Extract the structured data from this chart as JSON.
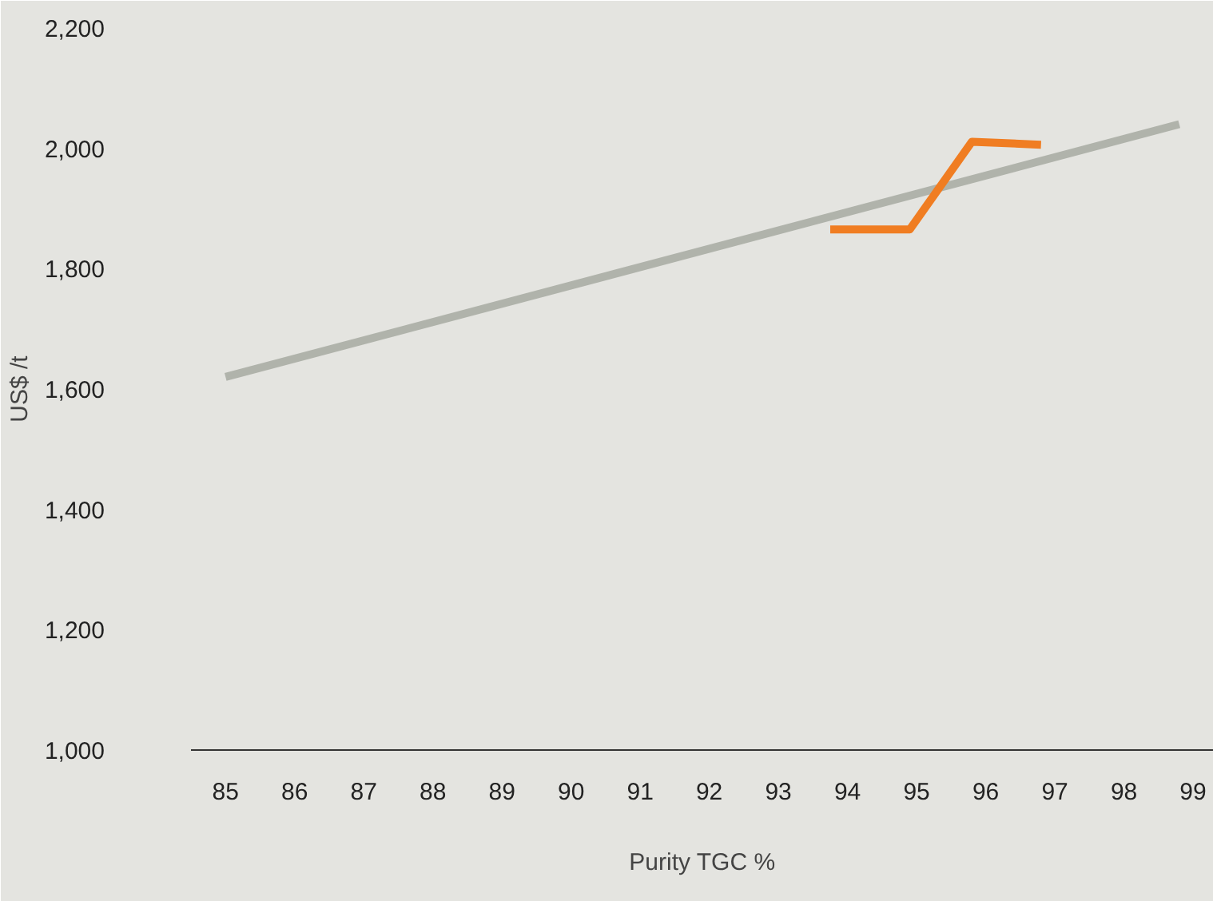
{
  "chart_data": {
    "type": "line",
    "xlabel": "Purity TGC %",
    "ylabel": "US$ /t",
    "xlim": [
      84.5,
      99.3
    ],
    "ylim": [
      1000,
      2200
    ],
    "xticks": [
      85,
      86,
      87,
      88,
      89,
      90,
      91,
      92,
      93,
      94,
      95,
      96,
      97,
      98,
      99
    ],
    "yticks": [
      {
        "value": 1000,
        "label": "1,000"
      },
      {
        "value": 1200,
        "label": "1,200"
      },
      {
        "value": 1400,
        "label": "1,400"
      },
      {
        "value": 1600,
        "label": "1,600"
      },
      {
        "value": 1800,
        "label": "1,800"
      },
      {
        "value": 2000,
        "label": "2,000"
      },
      {
        "value": 2200,
        "label": "2,200"
      }
    ],
    "marker": "none",
    "line_style": "solid",
    "series": [
      {
        "color": "#b0b3ab",
        "x": [
          85,
          98.8
        ],
        "values": [
          1620,
          2040
        ]
      },
      {
        "color": "#f07d22",
        "x": [
          93.75,
          94.9,
          95.8,
          96.8
        ],
        "values": [
          1865,
          1865,
          2011,
          2006
        ]
      }
    ]
  }
}
